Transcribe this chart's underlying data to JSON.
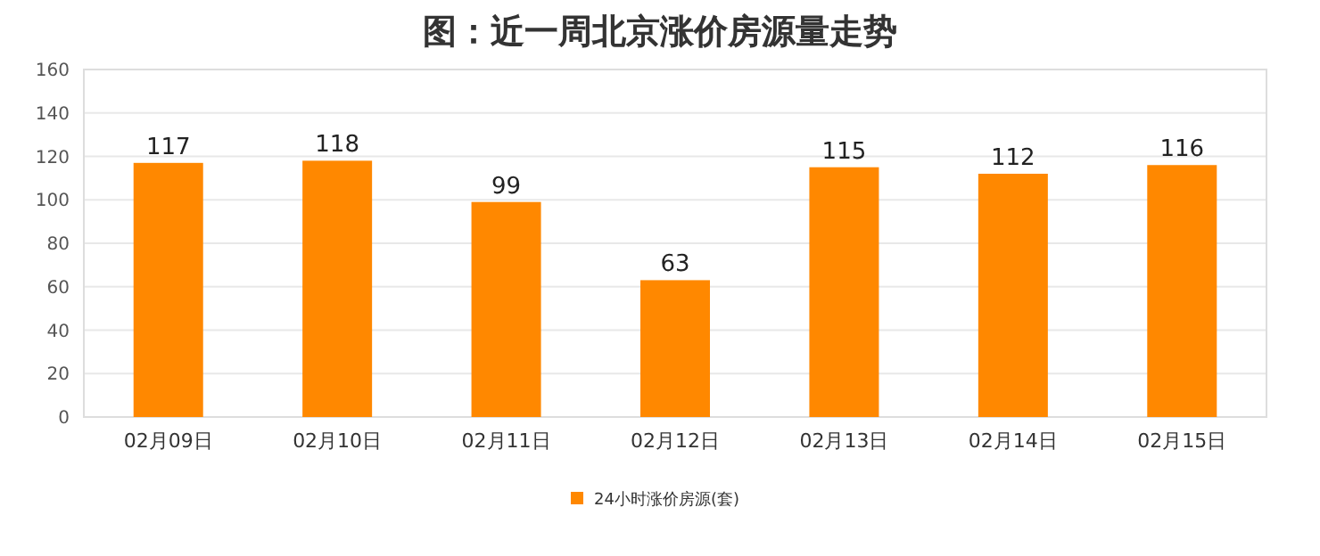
{
  "chart_data": {
    "type": "bar",
    "title": "图：近一周北京涨价房源量走势",
    "categories": [
      "02月09日",
      "02月10日",
      "02月11日",
      "02月12日",
      "02月13日",
      "02月14日",
      "02月15日"
    ],
    "series": [
      {
        "name": "24小时涨价房源(套)",
        "color": "#ff8800",
        "values": [
          117,
          118,
          99,
          63,
          115,
          112,
          116
        ]
      }
    ],
    "ylim": [
      0,
      160
    ],
    "yticks": [
      0,
      20,
      40,
      60,
      80,
      100,
      120,
      140,
      160
    ],
    "grid": "y",
    "legend": "bottom",
    "data_labels": true
  }
}
